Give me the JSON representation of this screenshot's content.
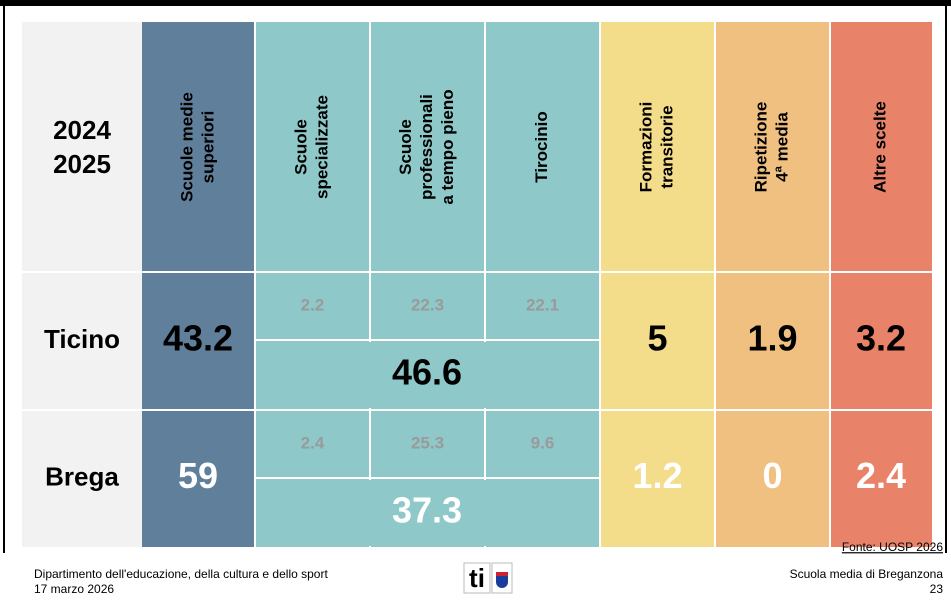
{
  "header": {
    "year": [
      "2024",
      "2025"
    ],
    "columns": [
      [
        "Scuole medie",
        "superiori"
      ],
      [
        "Scuole",
        "specializzate"
      ],
      [
        "Scuole",
        "professionali",
        "a tempo pieno"
      ],
      [
        "Tirocinio"
      ],
      [
        "Formazioni",
        "transitorie"
      ],
      [
        "Ripetizione",
        "4ª media"
      ],
      [
        "Altre scelte"
      ]
    ]
  },
  "rows": [
    {
      "label": "Ticino",
      "main": "43.2",
      "sub": [
        "2.2",
        "22.3",
        "22.1"
      ],
      "total": "46.6",
      "others": [
        "5",
        "1.9",
        "3.2"
      ]
    },
    {
      "label": "Brega",
      "main": "59",
      "sub": [
        "2.4",
        "25.3",
        "9.6"
      ],
      "total": "37.3",
      "others": [
        "1.2",
        "0",
        "2.4"
      ]
    }
  ],
  "footer": {
    "left": [
      "Dipartimento dell'educazione, della cultura e dello sport",
      "17 marzo 2026"
    ],
    "source": "Fonte: UOSP 2026",
    "right": [
      "Scuola media di Breganzona",
      "23"
    ],
    "logo": "ti"
  }
}
